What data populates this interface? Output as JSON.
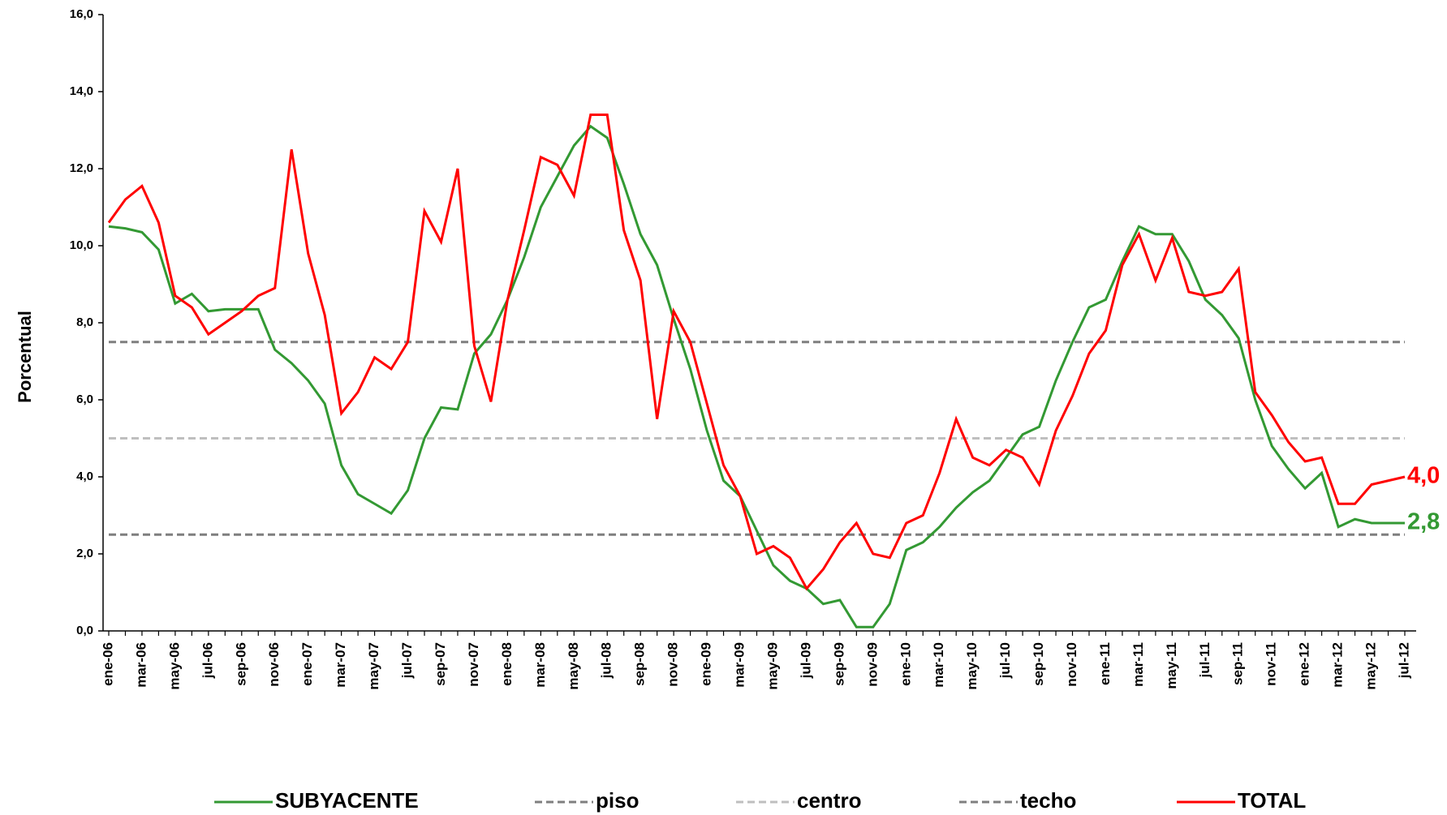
{
  "chart_data": {
    "type": "line",
    "y_label": "Porcentual",
    "ylim": [
      0,
      16
    ],
    "yticks": [
      {
        "value": 0,
        "label": "0,0"
      },
      {
        "value": 2,
        "label": "2,0"
      },
      {
        "value": 4,
        "label": "4,0"
      },
      {
        "value": 6,
        "label": "6,0"
      },
      {
        "value": 8,
        "label": "8,0"
      },
      {
        "value": 10,
        "label": "10,0"
      },
      {
        "value": 12,
        "label": "12,0"
      },
      {
        "value": 14,
        "label": "14,0"
      },
      {
        "value": 16,
        "label": "16,0"
      }
    ],
    "grid": false,
    "legend": "bottom",
    "categories": [
      "ene-06",
      null,
      "mar-06",
      null,
      "may-06",
      null,
      "jul-06",
      null,
      "sep-06",
      null,
      "nov-06",
      null,
      "ene-07",
      null,
      "mar-07",
      null,
      "may-07",
      null,
      "jul-07",
      null,
      "sep-07",
      null,
      "nov-07",
      null,
      "ene-08",
      null,
      "mar-08",
      null,
      "may-08",
      null,
      "jul-08",
      null,
      "sep-08",
      null,
      "nov-08",
      null,
      "ene-09",
      null,
      "mar-09",
      null,
      "may-09",
      null,
      "jul-09",
      null,
      "sep-09",
      null,
      "nov-09",
      null,
      "ene-10",
      null,
      "mar-10",
      null,
      "may-10",
      null,
      "jul-10",
      null,
      "sep-10",
      null,
      "nov-10",
      null,
      "ene-11",
      null,
      "mar-11",
      null,
      "may-11",
      null,
      "jul-11",
      null,
      "sep-11",
      null,
      "nov-11",
      null,
      "ene-12",
      null,
      "mar-12",
      null,
      "may-12",
      null,
      "jul-12"
    ],
    "series": [
      {
        "name": "SUBYACENTE",
        "color": "#339933",
        "dashed": false,
        "values": [
          10.5,
          10.45,
          10.35,
          9.9,
          8.5,
          8.75,
          8.3,
          8.35,
          8.35,
          8.35,
          7.3,
          6.95,
          6.5,
          5.9,
          4.3,
          3.55,
          3.3,
          3.05,
          3.65,
          5.0,
          5.8,
          5.75,
          7.2,
          7.7,
          8.6,
          9.7,
          11.0,
          11.8,
          12.6,
          13.1,
          12.8,
          11.6,
          10.3,
          9.5,
          8.1,
          6.8,
          5.2,
          3.9,
          3.5,
          2.6,
          1.7,
          1.3,
          1.1,
          0.7,
          0.8,
          0.1,
          0.1,
          0.7,
          2.1,
          2.3,
          2.7,
          3.2,
          3.6,
          3.9,
          4.5,
          5.1,
          5.3,
          6.5,
          7.5,
          8.4,
          8.6,
          9.6,
          10.5,
          10.3,
          10.3,
          9.6,
          8.6,
          8.2,
          7.6,
          6.0,
          4.8,
          4.2,
          3.7,
          4.1,
          2.7,
          2.9,
          2.8,
          2.8,
          2.8
        ],
        "value_labels": [
          null,
          null,
          null,
          null,
          null,
          null,
          null,
          null,
          null,
          null,
          null,
          null,
          null,
          null,
          null,
          null,
          null,
          null,
          null,
          null,
          null,
          null,
          null,
          null,
          null,
          null,
          null,
          null,
          null,
          null,
          null,
          null,
          null,
          null,
          null,
          null,
          null,
          null,
          null,
          null,
          null,
          null,
          null,
          null,
          null,
          null,
          null,
          null,
          null,
          null,
          null,
          null,
          null,
          null,
          null,
          null,
          null,
          null,
          null,
          null,
          null,
          null,
          null,
          null,
          null,
          null,
          null,
          null,
          null,
          null,
          null,
          null,
          null,
          null,
          null,
          null,
          null,
          null,
          "2,8"
        ]
      },
      {
        "name": "piso",
        "color": "#7f7f7f",
        "dashed": true,
        "values": [
          2.5,
          2.5,
          2.5,
          2.5,
          2.5,
          2.5,
          2.5,
          2.5,
          2.5,
          2.5,
          2.5,
          2.5,
          2.5,
          2.5,
          2.5,
          2.5,
          2.5,
          2.5,
          2.5,
          2.5,
          2.5,
          2.5,
          2.5,
          2.5,
          2.5,
          2.5,
          2.5,
          2.5,
          2.5,
          2.5,
          2.5,
          2.5,
          2.5,
          2.5,
          2.5,
          2.5,
          2.5,
          2.5,
          2.5,
          2.5,
          2.5,
          2.5,
          2.5,
          2.5,
          2.5,
          2.5,
          2.5,
          2.5,
          2.5,
          2.5,
          2.5,
          2.5,
          2.5,
          2.5,
          2.5,
          2.5,
          2.5,
          2.5,
          2.5,
          2.5,
          2.5,
          2.5,
          2.5,
          2.5,
          2.5,
          2.5,
          2.5,
          2.5,
          2.5,
          2.5,
          2.5,
          2.5,
          2.5,
          2.5,
          2.5,
          2.5,
          2.5,
          2.5,
          2.5
        ]
      },
      {
        "name": "centro",
        "color": "#bfbfbf",
        "dashed": true,
        "values": [
          5,
          5,
          5,
          5,
          5,
          5,
          5,
          5,
          5,
          5,
          5,
          5,
          5,
          5,
          5,
          5,
          5,
          5,
          5,
          5,
          5,
          5,
          5,
          5,
          5,
          5,
          5,
          5,
          5,
          5,
          5,
          5,
          5,
          5,
          5,
          5,
          5,
          5,
          5,
          5,
          5,
          5,
          5,
          5,
          5,
          5,
          5,
          5,
          5,
          5,
          5,
          5,
          5,
          5,
          5,
          5,
          5,
          5,
          5,
          5,
          5,
          5,
          5,
          5,
          5,
          5,
          5,
          5,
          5,
          5,
          5,
          5,
          5,
          5,
          5,
          5,
          5,
          5,
          5
        ]
      },
      {
        "name": "techo",
        "color": "#7f7f7f",
        "dashed": true,
        "values": [
          7.5,
          7.5,
          7.5,
          7.5,
          7.5,
          7.5,
          7.5,
          7.5,
          7.5,
          7.5,
          7.5,
          7.5,
          7.5,
          7.5,
          7.5,
          7.5,
          7.5,
          7.5,
          7.5,
          7.5,
          7.5,
          7.5,
          7.5,
          7.5,
          7.5,
          7.5,
          7.5,
          7.5,
          7.5,
          7.5,
          7.5,
          7.5,
          7.5,
          7.5,
          7.5,
          7.5,
          7.5,
          7.5,
          7.5,
          7.5,
          7.5,
          7.5,
          7.5,
          7.5,
          7.5,
          7.5,
          7.5,
          7.5,
          7.5,
          7.5,
          7.5,
          7.5,
          7.5,
          7.5,
          7.5,
          7.5,
          7.5,
          7.5,
          7.5,
          7.5,
          7.5,
          7.5,
          7.5,
          7.5,
          7.5,
          7.5,
          7.5,
          7.5,
          7.5,
          7.5,
          7.5,
          7.5,
          7.5,
          7.5,
          7.5,
          7.5,
          7.5,
          7.5,
          7.5
        ]
      },
      {
        "name": "TOTAL",
        "color": "#ff0000",
        "dashed": false,
        "values": [
          10.6,
          11.2,
          11.55,
          10.6,
          8.7,
          8.4,
          7.7,
          8.0,
          8.3,
          8.7,
          8.9,
          12.5,
          9.8,
          8.2,
          5.65,
          6.2,
          7.1,
          6.8,
          7.5,
          10.9,
          10.1,
          12.0,
          7.4,
          5.95,
          8.6,
          10.4,
          12.3,
          12.1,
          11.3,
          13.4,
          13.4,
          10.4,
          9.1,
          5.5,
          8.3,
          7.5,
          5.9,
          4.3,
          3.5,
          2.0,
          2.2,
          1.9,
          1.1,
          1.6,
          2.3,
          2.8,
          2.0,
          1.9,
          2.8,
          3.0,
          4.1,
          5.5,
          4.5,
          4.3,
          4.7,
          4.5,
          3.8,
          5.2,
          6.1,
          7.2,
          7.8,
          9.5,
          10.3,
          9.1,
          10.2,
          8.8,
          8.7,
          8.8,
          9.4,
          6.2,
          5.6,
          4.9,
          4.4,
          4.5,
          3.3,
          3.3,
          3.8,
          3.9,
          4.0
        ],
        "value_labels": [
          null,
          null,
          null,
          null,
          null,
          null,
          null,
          null,
          null,
          null,
          null,
          null,
          null,
          null,
          null,
          null,
          null,
          null,
          null,
          null,
          null,
          null,
          null,
          null,
          null,
          null,
          null,
          null,
          null,
          null,
          null,
          null,
          null,
          null,
          null,
          null,
          null,
          null,
          null,
          null,
          null,
          null,
          null,
          null,
          null,
          null,
          null,
          null,
          null,
          null,
          null,
          null,
          null,
          null,
          null,
          null,
          null,
          null,
          null,
          null,
          null,
          null,
          null,
          null,
          null,
          null,
          null,
          null,
          null,
          null,
          null,
          null,
          null,
          null,
          null,
          null,
          null,
          null,
          "4,0"
        ]
      }
    ]
  }
}
